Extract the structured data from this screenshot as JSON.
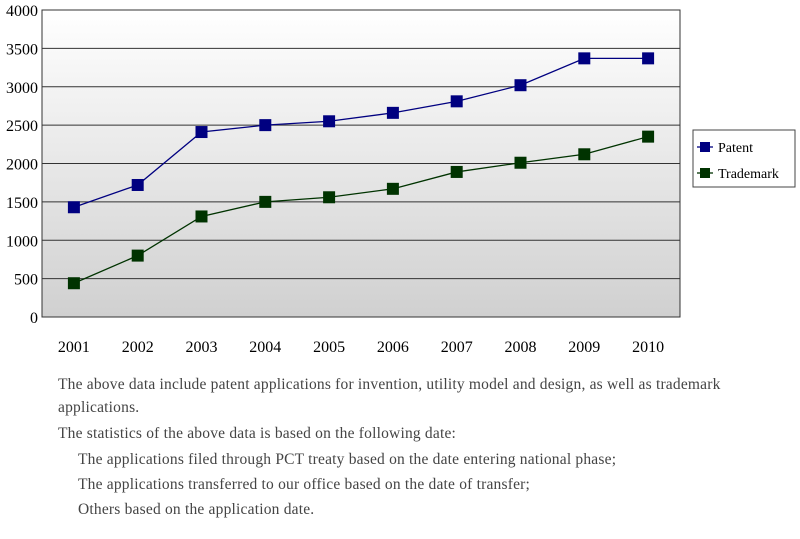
{
  "chart_data": {
    "type": "line",
    "title": "",
    "xlabel": "",
    "ylabel": "",
    "categories": [
      "2001",
      "2002",
      "2003",
      "2004",
      "2005",
      "2006",
      "2007",
      "2008",
      "2009",
      "2010"
    ],
    "ylim": [
      0,
      4000
    ],
    "yticks": [
      0,
      500,
      1000,
      1500,
      2000,
      2500,
      3000,
      3500,
      4000
    ],
    "grid": true,
    "legend_position": "right",
    "series": [
      {
        "name": "Patent",
        "color": "#000080",
        "values": [
          1430,
          1720,
          2410,
          2500,
          2550,
          2660,
          2810,
          3020,
          3370,
          3370
        ]
      },
      {
        "name": "Trademark",
        "color": "#003300",
        "values": [
          440,
          800,
          1310,
          1500,
          1560,
          1670,
          1890,
          2010,
          2120,
          2350
        ]
      }
    ]
  },
  "notes": {
    "line1": "The above data include patent applications for invention, utility model and design, as well as trademark applications.",
    "line2": "The statistics of the above data is based on the following date:",
    "item1": "The applications filed through PCT treaty based on the date entering national phase;",
    "item2": "The applications transferred to our office based on the date of transfer;",
    "item3": "Others based on the application date."
  }
}
